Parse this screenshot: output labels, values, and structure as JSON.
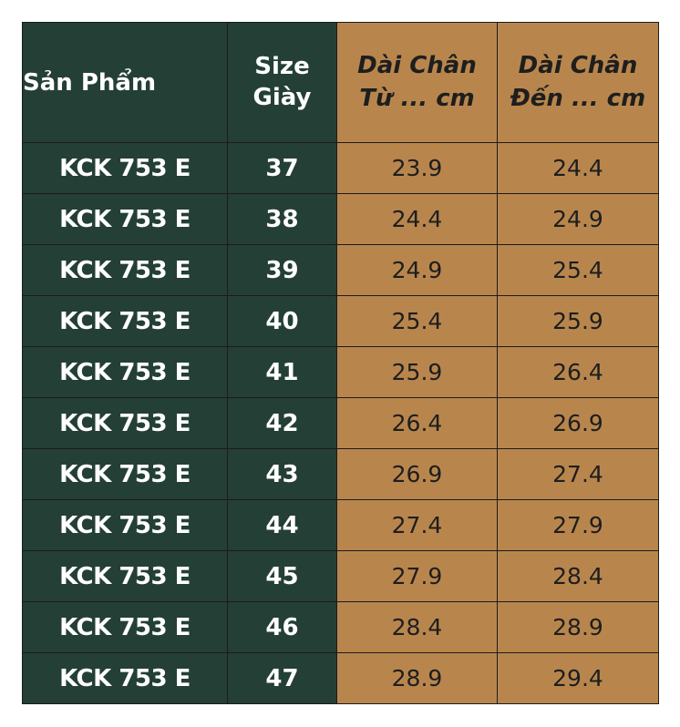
{
  "headers": {
    "product": "Sản Phẩm",
    "size_line1": "Size",
    "size_line2": "Giày",
    "from_line1": "Dài Chân",
    "from_line2": "Từ ... cm",
    "to_line1": "Dài Chân",
    "to_line2": "Đến ... cm"
  },
  "rows": [
    {
      "product": "KCK 753 E",
      "size": "37",
      "from": "23.9",
      "to": "24.4"
    },
    {
      "product": "KCK 753 E",
      "size": "38",
      "from": "24.4",
      "to": "24.9"
    },
    {
      "product": "KCK 753 E",
      "size": "39",
      "from": "24.9",
      "to": "25.4"
    },
    {
      "product": "KCK 753 E",
      "size": "40",
      "from": "25.4",
      "to": "25.9"
    },
    {
      "product": "KCK 753 E",
      "size": "41",
      "from": "25.9",
      "to": "26.4"
    },
    {
      "product": "KCK 753 E",
      "size": "42",
      "from": "26.4",
      "to": "26.9"
    },
    {
      "product": "KCK 753 E",
      "size": "43",
      "from": "26.9",
      "to": "27.4"
    },
    {
      "product": "KCK 753 E",
      "size": "44",
      "from": "27.4",
      "to": "27.9"
    },
    {
      "product": "KCK 753 E",
      "size": "45",
      "from": "27.9",
      "to": "28.4"
    },
    {
      "product": "KCK 753 E",
      "size": "46",
      "from": "28.4",
      "to": "28.9"
    },
    {
      "product": "KCK 753 E",
      "size": "47",
      "from": "28.9",
      "to": "29.4"
    }
  ],
  "colors": {
    "dark_green": "#243f36",
    "tan": "#b8864d",
    "border": "#1b1b1b"
  }
}
